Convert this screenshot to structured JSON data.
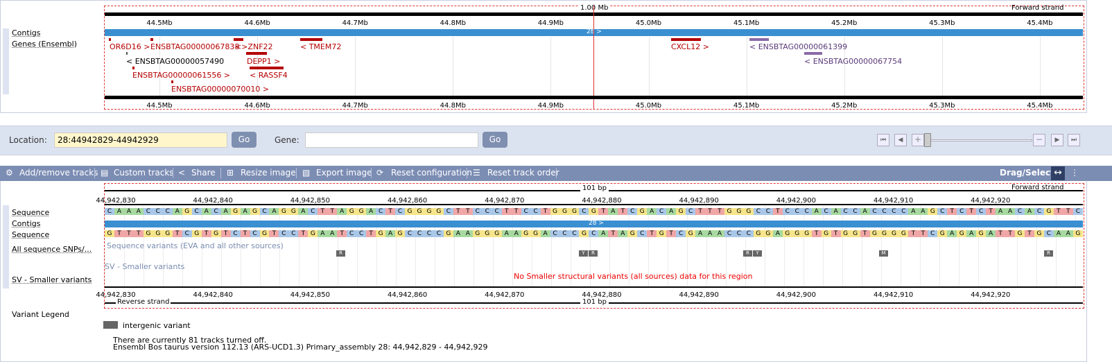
{
  "top_panel": {
    "scale_label": "1.00 Mb",
    "strand_label": "Forward strand",
    "ticks": [
      "44.5Mb",
      "44.6Mb",
      "44.7Mb",
      "44.8Mb",
      "44.9Mb",
      "45.0Mb",
      "45.1Mb",
      "45.2Mb",
      "45.3Mb",
      "45.4Mb"
    ],
    "tracks": {
      "contigs": "Contigs",
      "genes": "Genes (Ensembl)"
    },
    "contig_label": "28 >",
    "genes": [
      {
        "label": "OR6D16 >",
        "color": "#b40000"
      },
      {
        "label": "ENSBTAG00000067838",
        "color": "#b40000"
      },
      {
        "label": "<>ZNF22",
        "color": "#b40000"
      },
      {
        "label": "< TMEM72",
        "color": "#b40000"
      },
      {
        "label": "CXCL12 >",
        "color": "#b40000"
      },
      {
        "label": "< ENSBTAG00000061399",
        "color": "#8a6aa8"
      },
      {
        "label": "< ENSBTAG00000057490",
        "color": "#000000"
      },
      {
        "label": "DEPP1 >",
        "color": "#b40000"
      },
      {
        "label": "< ENSBTAG00000067754",
        "color": "#8a6aa8"
      },
      {
        "label": "ENSBTAG00000061556 >",
        "color": "#b40000"
      },
      {
        "label": "< RASSF4",
        "color": "#b40000"
      },
      {
        "label": "ENSBTAG00000070010 >",
        "color": "#b40000"
      }
    ]
  },
  "nav": {
    "location_label": "Location:",
    "location_value": "28:44942829-44942929",
    "go_label": "Go",
    "gene_label": "Gene:",
    "gene_value": "",
    "go2_label": "Go"
  },
  "toolbar": {
    "add_remove": "Add/remove tracks",
    "custom": "Custom tracks",
    "share": "Share",
    "resize": "Resize image",
    "export": "Export image",
    "reset_config": "Reset configuration",
    "reset_order": "Reset track order",
    "drag_select": "Drag/Select:"
  },
  "bottom_panel": {
    "scale_label": "101 bp",
    "strand_forward": "Forward strand",
    "strand_reverse": "Reverse strand",
    "ticks": [
      "44,942,830",
      "44,942,840",
      "44,942,850",
      "44,942,860",
      "44,942,870",
      "44,942,880",
      "44,942,890",
      "44,942,900",
      "44,942,910",
      "44,942,920"
    ],
    "tracks": {
      "sequence": "Sequence",
      "contigs": "Contigs",
      "sequence2": "Sequence",
      "snps": "All sequence SNPs/...",
      "sv": "SV - Smaller variants"
    },
    "contig_label": "28 >",
    "seq_forward": "CAAACCCAGCACAGAGCAGGACTTAGGACTCGGGGCTTCCCTTCCTGGGCGTATCGACAGCTTTGGGCCTCCCACACCACCCCAAGCTCTCTAACACGTTC",
    "seq_reverse": "GTTTGGGTCGTGTCTCGTCCTGAATCCTGAGCCCCGAAGGGAAGGACCCGCATAGCTGTCGAAACCCGGAGGGTGTGGTGGGGTTCGAGAGATTGTGCAAG",
    "snp_caption": "Sequence variants (EVA and all other sources)",
    "sv_caption": "SV - Smaller variants",
    "no_data_msg": "No Smaller structural variants (all sources) data for this region",
    "snp_chips": [
      "R",
      "Y",
      "R",
      "R",
      "Y",
      "M",
      "R"
    ]
  },
  "legend": {
    "title": "Variant Legend",
    "item": "intergenic variant",
    "tracks_off": "There are currently 81 tracks turned off.",
    "version": "Ensembl Bos taurus version 112.13 (ARS-UCD1.3) Primary_assembly 28: 44,942,829 - 44,942,929"
  },
  "colors": {
    "A": "#a7d9a0",
    "C": "#a9c7e8",
    "G": "#f6e58a",
    "T": "#f0a6a6",
    "contig": "#3a8fd0",
    "toolbar": "#7c8db4",
    "location_bg": "#fff6cc"
  }
}
